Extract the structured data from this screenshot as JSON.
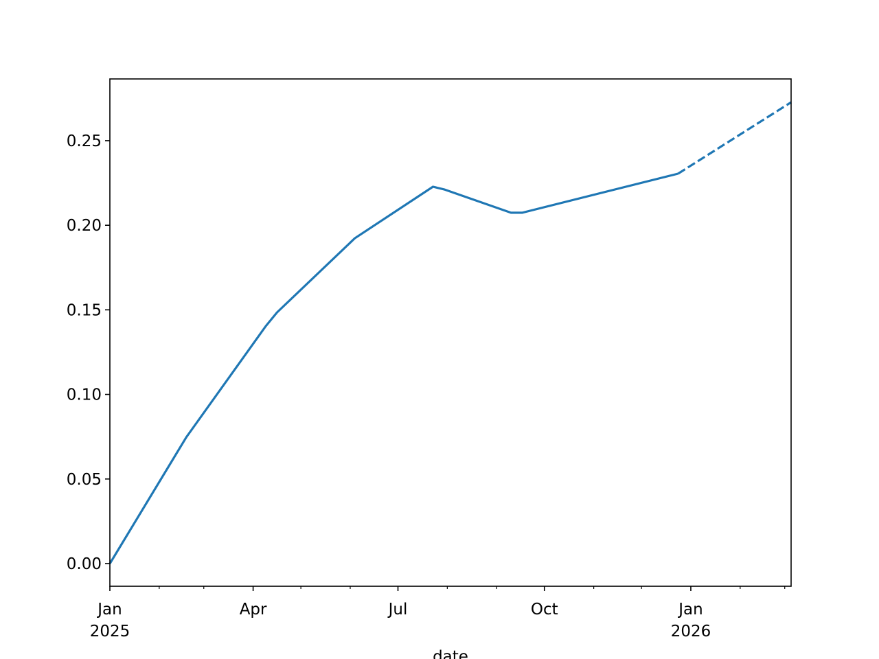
{
  "chart_data": {
    "type": "line",
    "title": "",
    "xlabel": "date",
    "ylabel": "",
    "xlim": [
      "2025-01-01",
      "2026-03-05"
    ],
    "ylim": [
      -0.0134,
      0.2865
    ],
    "grid": false,
    "line_color": "#1f77b4",
    "x_ticks": [
      {
        "date": "2025-01-01",
        "label": "Jan",
        "sublabel": "2025"
      },
      {
        "date": "2025-04-01",
        "label": "Apr",
        "sublabel": ""
      },
      {
        "date": "2025-07-01",
        "label": "Jul",
        "sublabel": ""
      },
      {
        "date": "2025-10-01",
        "label": "Oct",
        "sublabel": ""
      },
      {
        "date": "2026-01-01",
        "label": "Jan",
        "sublabel": "2026"
      }
    ],
    "x_minor_ticks": [
      "2025-02-01",
      "2025-03-01",
      "2025-05-01",
      "2025-06-01",
      "2025-08-01",
      "2025-09-01",
      "2025-11-01",
      "2025-12-01",
      "2026-02-01",
      "2026-03-01"
    ],
    "y_ticks": [
      {
        "value": 0.0,
        "label": "0.00"
      },
      {
        "value": 0.05,
        "label": "0.05"
      },
      {
        "value": 0.1,
        "label": "0.10"
      },
      {
        "value": 0.15,
        "label": "0.15"
      },
      {
        "value": 0.2,
        "label": "0.20"
      },
      {
        "value": 0.25,
        "label": "0.25"
      }
    ],
    "series": [
      {
        "style": "solid",
        "x": [
          "2025-01-01",
          "2025-02-18",
          "2025-04-09",
          "2025-04-16",
          "2025-06-04",
          "2025-07-23",
          "2025-07-30",
          "2025-09-10",
          "2025-09-17",
          "2025-12-24"
        ],
        "y": [
          0.0,
          0.0747,
          0.1404,
          0.1485,
          0.1924,
          0.2228,
          0.2212,
          0.2074,
          0.2074,
          0.2305
        ]
      },
      {
        "style": "dashed",
        "x": [
          "2025-12-24",
          "2026-03-05"
        ],
        "y": [
          0.2305,
          0.2727
        ]
      }
    ]
  }
}
